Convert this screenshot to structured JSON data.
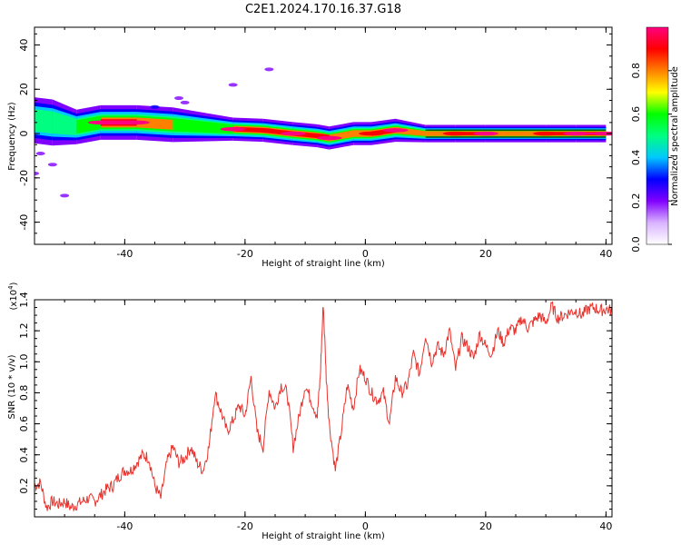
{
  "title": "C2E1.2024.170.16.37.G18",
  "colors": {
    "snr_line": "#e8332d",
    "frame": "#000000"
  },
  "chart_data": [
    {
      "type": "heatmap",
      "xlabel": "Height of straight line (km)",
      "ylabel": "Frequency (Hz)",
      "xlim": [
        -55,
        41
      ],
      "ylim": [
        -50,
        48
      ],
      "xticks": [
        -40,
        -20,
        0,
        20,
        40
      ],
      "yticks": [
        40,
        20,
        0,
        -20,
        -40
      ],
      "colorbar": {
        "label": "Normalized spectral amplitude",
        "range": [
          0.0,
          1.0
        ],
        "ticks": [
          "0.0",
          "0.2",
          "0.4",
          "0.6",
          "0.8"
        ],
        "tick_values": [
          0.0,
          0.2,
          0.4,
          0.6,
          0.8
        ],
        "colormap": [
          "#ffffff",
          "#d9b3ff",
          "#8000ff",
          "#0000ff",
          "#00c8ff",
          "#00ff80",
          "#00ff00",
          "#ffff00",
          "#ff8000",
          "#ff0000",
          "#ff0080"
        ]
      },
      "ridge": [
        {
          "x": -55,
          "freq": 6,
          "amp": 0.45,
          "width": 4
        },
        {
          "x": -52,
          "freq": 5,
          "amp": 0.5,
          "width": 4
        },
        {
          "x": -48,
          "freq": 3,
          "amp": 0.55,
          "width": 3
        },
        {
          "x": -44,
          "freq": 5,
          "amp": 0.95,
          "width": 3
        },
        {
          "x": -38,
          "freq": 5,
          "amp": 0.95,
          "width": 3
        },
        {
          "x": -32,
          "freq": 4,
          "amp": 0.7,
          "width": 3
        },
        {
          "x": -27,
          "freq": 3,
          "amp": 0.6,
          "width": 2.5
        },
        {
          "x": -22,
          "freq": 2,
          "amp": 0.95,
          "width": 2
        },
        {
          "x": -17,
          "freq": 1.5,
          "amp": 0.85,
          "width": 2
        },
        {
          "x": -12,
          "freq": 0,
          "amp": 0.95,
          "width": 2
        },
        {
          "x": -8,
          "freq": -1,
          "amp": 0.85,
          "width": 2
        },
        {
          "x": -6,
          "freq": -2,
          "amp": 0.95,
          "width": 2
        },
        {
          "x": -2,
          "freq": 0,
          "amp": 0.8,
          "width": 2
        },
        {
          "x": 1,
          "freq": 0,
          "amp": 0.9,
          "width": 2
        },
        {
          "x": 5,
          "freq": 1.5,
          "amp": 0.95,
          "width": 2
        },
        {
          "x": 10,
          "freq": 0,
          "amp": 0.8,
          "width": 1.5
        },
        {
          "x": 15,
          "freq": 0,
          "amp": 0.9,
          "width": 1.5
        },
        {
          "x": 20,
          "freq": 0,
          "amp": 0.95,
          "width": 1.5
        },
        {
          "x": 25,
          "freq": 0,
          "amp": 0.8,
          "width": 1.5
        },
        {
          "x": 30,
          "freq": 0,
          "amp": 0.9,
          "width": 1.5
        },
        {
          "x": 35,
          "freq": 0,
          "amp": 0.95,
          "width": 1.5
        },
        {
          "x": 40,
          "freq": 0,
          "amp": 0.95,
          "width": 1.5
        }
      ],
      "scatter_blobs": [
        {
          "x": -35,
          "freq": 12,
          "amp": 0.25
        },
        {
          "x": -30,
          "freq": 14,
          "amp": 0.2
        },
        {
          "x": -31,
          "freq": 16,
          "amp": 0.15
        },
        {
          "x": -22,
          "freq": 22,
          "amp": 0.15
        },
        {
          "x": -16,
          "freq": 29,
          "amp": 0.2
        },
        {
          "x": -54,
          "freq": -9,
          "amp": 0.2
        },
        {
          "x": -52,
          "freq": -14,
          "amp": 0.15
        },
        {
          "x": -50,
          "freq": -28,
          "amp": 0.15
        },
        {
          "x": -55,
          "freq": -18,
          "amp": 0.15
        }
      ]
    },
    {
      "type": "line",
      "xlabel": "Height of straight line (km)",
      "ylabel": "SNR (10 * v/v)",
      "y_multiplier": "(x10",
      "y_multiplier_exp": "4",
      "y_multiplier_close": ")",
      "xlim": [
        -55,
        41
      ],
      "ylim": [
        0.0,
        1.4
      ],
      "xticks": [
        -40,
        -20,
        0,
        20,
        40
      ],
      "yticks": [
        "0.2",
        "0.4",
        "0.6",
        "0.8",
        "1.0",
        "1.2",
        "1.4"
      ],
      "ytick_values": [
        0.2,
        0.4,
        0.6,
        0.8,
        1.0,
        1.2,
        1.4
      ],
      "series": [
        {
          "x": [
            -55,
            -54,
            -53,
            -52,
            -51,
            -50,
            -49,
            -48,
            -47,
            -46,
            -45,
            -44,
            -43,
            -42,
            -41,
            -40,
            -39,
            -38,
            -37,
            -36,
            -35,
            -34,
            -33,
            -32,
            -31,
            -30,
            -29,
            -28,
            -27,
            -26,
            -25,
            -24,
            -23,
            -22,
            -21,
            -20,
            -19,
            -18,
            -17,
            -16,
            -15,
            -14,
            -13,
            -12,
            -11,
            -10,
            -9,
            -8,
            -7.5,
            -7,
            -6.5,
            -6,
            -5,
            -4,
            -3,
            -2,
            -1,
            0,
            1,
            2,
            3,
            4,
            5,
            6,
            7,
            8,
            9,
            10,
            11,
            12,
            13,
            14,
            15,
            16,
            17,
            18,
            19,
            20,
            21,
            22,
            23,
            24,
            25,
            26,
            27,
            28,
            29,
            30,
            31,
            32,
            33,
            34,
            35,
            36,
            37,
            38,
            39,
            40,
            41
          ],
          "y": [
            0.2,
            0.22,
            0.06,
            0.1,
            0.08,
            0.1,
            0.06,
            0.08,
            0.1,
            0.12,
            0.1,
            0.14,
            0.18,
            0.2,
            0.26,
            0.3,
            0.3,
            0.35,
            0.4,
            0.38,
            0.2,
            0.12,
            0.35,
            0.45,
            0.35,
            0.38,
            0.45,
            0.35,
            0.3,
            0.45,
            0.8,
            0.68,
            0.55,
            0.62,
            0.72,
            0.65,
            0.9,
            0.55,
            0.45,
            0.82,
            0.7,
            0.85,
            0.8,
            0.45,
            0.65,
            0.85,
            0.75,
            0.65,
            0.9,
            1.38,
            0.9,
            0.6,
            0.3,
            0.55,
            0.85,
            0.7,
            0.95,
            0.9,
            0.8,
            0.75,
            0.8,
            0.6,
            0.9,
            0.8,
            0.85,
            1.05,
            0.92,
            1.18,
            1.0,
            1.1,
            1.05,
            1.2,
            0.95,
            1.15,
            1.1,
            1.02,
            1.18,
            1.1,
            1.05,
            1.2,
            1.12,
            1.22,
            1.2,
            1.28,
            1.22,
            1.26,
            1.3,
            1.25,
            1.36,
            1.28,
            1.3,
            1.32,
            1.33,
            1.3,
            1.34,
            1.35,
            1.33,
            1.34,
            1.33
          ]
        }
      ]
    }
  ]
}
